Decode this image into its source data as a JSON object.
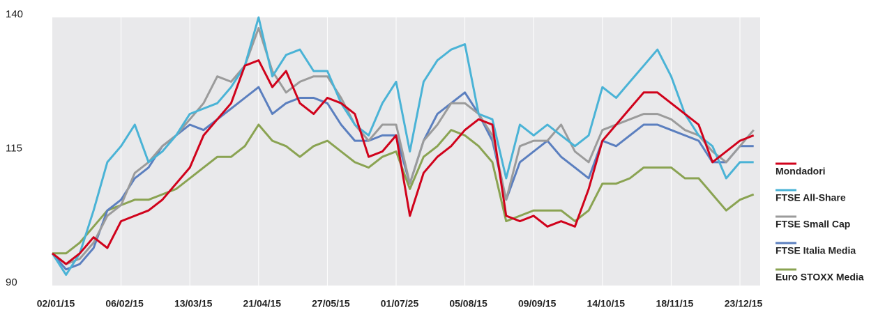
{
  "chart_data": {
    "type": "line",
    "categories": [
      "02/01/15",
      null,
      null,
      null,
      null,
      "06/02/15",
      null,
      null,
      null,
      null,
      "13/03/15",
      null,
      null,
      null,
      null,
      "21/04/15",
      null,
      null,
      null,
      null,
      "27/05/15",
      null,
      null,
      null,
      null,
      "01/07/25",
      null,
      null,
      null,
      null,
      "05/08/15",
      null,
      null,
      null,
      null,
      "09/09/15",
      null,
      null,
      null,
      null,
      "14/10/15",
      null,
      null,
      null,
      null,
      "18/11/15",
      null,
      null,
      null,
      null,
      "23/12/15",
      null
    ],
    "series": [
      {
        "name": "Mondadori",
        "color": "#d0021b",
        "values": [
          96,
          94,
          96,
          99,
          97,
          102,
          103,
          104,
          106,
          109,
          112,
          118,
          121,
          124,
          131,
          132,
          127,
          130,
          124,
          122,
          125,
          124,
          122,
          114,
          115,
          118,
          103,
          111,
          114,
          116,
          119,
          121,
          120,
          103,
          102,
          103,
          101,
          102,
          101,
          108,
          117,
          120,
          123,
          126,
          126,
          124,
          122,
          120,
          113,
          115,
          117,
          118
        ]
      },
      {
        "name": "FTSE All-Share",
        "color": "#4ab3d6",
        "values": [
          96,
          92,
          96,
          104,
          113,
          116,
          120,
          113,
          115,
          118,
          122,
          123,
          124,
          127,
          131,
          140,
          129,
          133,
          134,
          130,
          130,
          124,
          120,
          118,
          124,
          128,
          115,
          128,
          132,
          134,
          135,
          122,
          121,
          110,
          120,
          118,
          120,
          118,
          116,
          118,
          127,
          125,
          128,
          131,
          134,
          129,
          122,
          118,
          116,
          110,
          113,
          113
        ]
      },
      {
        "name": "FTSE Small Cap",
        "color": "#9b9b9b",
        "values": [
          96,
          94,
          95,
          98,
          103,
          105,
          111,
          113,
          116,
          118,
          121,
          124,
          129,
          128,
          131,
          138,
          130,
          126,
          128,
          129,
          129,
          125,
          120,
          117,
          120,
          120,
          109,
          117,
          120,
          124,
          124,
          122,
          118,
          106,
          116,
          117,
          117,
          120,
          115,
          113,
          119,
          120,
          121,
          122,
          122,
          121,
          119,
          118,
          115,
          113,
          116,
          119
        ]
      },
      {
        "name": "FTSE Italia Media",
        "color": "#5b7fbf",
        "values": [
          96,
          93,
          94,
          97,
          104,
          106,
          110,
          112,
          116,
          118,
          120,
          119,
          121,
          123,
          125,
          127,
          122,
          124,
          125,
          125,
          124,
          120,
          117,
          117,
          118,
          118,
          109,
          117,
          122,
          124,
          126,
          122,
          117,
          106,
          113,
          115,
          117,
          114,
          112,
          110,
          117,
          116,
          118,
          120,
          120,
          119,
          118,
          117,
          113,
          113,
          116,
          116
        ]
      },
      {
        "name": "Euro STOXX Media",
        "color": "#8aa352",
        "values": [
          96,
          96,
          98,
          101,
          104,
          105,
          106,
          106,
          107,
          108,
          110,
          112,
          114,
          114,
          116,
          120,
          117,
          116,
          114,
          116,
          117,
          115,
          113,
          112,
          114,
          115,
          108,
          114,
          116,
          119,
          118,
          116,
          113,
          102,
          103,
          104,
          104,
          104,
          102,
          104,
          109,
          109,
          110,
          112,
          112,
          112,
          110,
          110,
          107,
          104,
          106,
          107
        ]
      }
    ],
    "ylim": [
      90,
      140
    ],
    "yticks": [
      90,
      115,
      140
    ],
    "grid": "vertical",
    "legend": "right"
  }
}
